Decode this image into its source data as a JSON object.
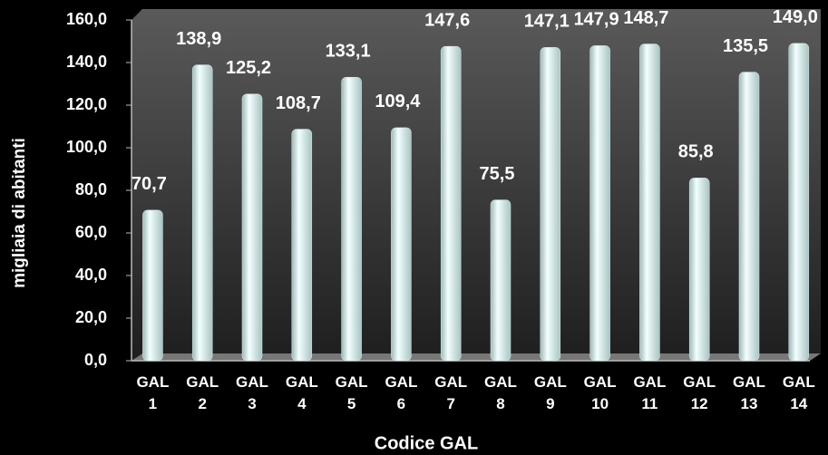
{
  "chart_data": {
    "type": "bar",
    "x_label": "Codice GAL",
    "y_label": "migliaia di abitanti",
    "categories": [
      "GAL 1",
      "GAL 2",
      "GAL 3",
      "GAL 4",
      "GAL 5",
      "GAL 6",
      "GAL 7",
      "GAL 8",
      "GAL 9",
      "GAL 10",
      "GAL 11",
      "GAL 12",
      "GAL 13",
      "GAL 14"
    ],
    "values": [
      70.7,
      138.9,
      125.2,
      108.7,
      133.1,
      109.4,
      147.6,
      75.5,
      147.1,
      147.9,
      148.7,
      85.8,
      135.5,
      149.0
    ],
    "value_labels": [
      "70,7",
      "138,9",
      "125,2",
      "108,7",
      "133,1",
      "109,4",
      "147,6",
      "75,5",
      "147,1",
      "147,9",
      "148,7",
      "85,8",
      "135,5",
      "149,0"
    ],
    "color": "#d8f2f0",
    "ylim": [
      0,
      160
    ],
    "yticks": [
      {
        "value": 0,
        "label": "0,0"
      },
      {
        "value": 20,
        "label": "20,0"
      },
      {
        "value": 40,
        "label": "40,0"
      },
      {
        "value": 60,
        "label": "60,0"
      },
      {
        "value": 80,
        "label": "80,0"
      },
      {
        "value": 100,
        "label": "100,0"
      },
      {
        "value": 120,
        "label": "120,0"
      },
      {
        "value": 140,
        "label": "140,0"
      },
      {
        "value": 160,
        "label": "160,0"
      }
    ],
    "grid": false
  }
}
